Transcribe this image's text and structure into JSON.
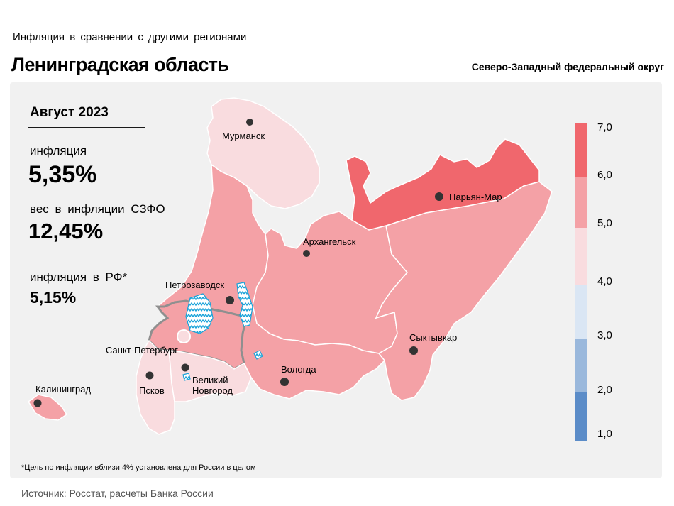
{
  "header": {
    "subtitle": "Инфляция  в сравнении  с другими  регионами",
    "title": "Ленинградская область",
    "district": "Северо-Западный федеральный округ"
  },
  "stats": {
    "period": "Август 2023",
    "inflation_label": "инфляция",
    "inflation_value": "5,35%",
    "weight_label": "вес в инфляции  СЗФО",
    "weight_value": "12,45%",
    "rf_label": "инфляция  в РФ*",
    "rf_value": "5,15%"
  },
  "map": {
    "cities": [
      {
        "key": "murmansk",
        "name": "Мурманск"
      },
      {
        "key": "naryan_mar",
        "name": "Нарьян-Мар"
      },
      {
        "key": "arkhangelsk",
        "name": "Архангельск"
      },
      {
        "key": "petrozavodsk",
        "name": "Петрозаводск"
      },
      {
        "key": "spb",
        "name": "Санкт-Петербург"
      },
      {
        "key": "syktyvkar",
        "name": "Сыктывкар"
      },
      {
        "key": "vologda",
        "name": "Вологда"
      },
      {
        "key": "kaliningrad",
        "name": "Калининград"
      },
      {
        "key": "pskov",
        "name": "Псков"
      },
      {
        "key": "v_novgorod_1",
        "name": "Великий"
      },
      {
        "key": "v_novgorod_2",
        "name": "Новгород"
      }
    ],
    "colors": {
      "over6": "#f0676d",
      "5to6": "#f4a1a6",
      "4to5": "#f9dcdf",
      "3to4": "#dae6f4",
      "2to3": "#9ab8dc",
      "1to2": "#5b8cc8",
      "highlight_border": "#8f8f8f",
      "lake": "#1aa3d9"
    }
  },
  "legend": {
    "ticks": [
      "7,0",
      "6,0",
      "5,0",
      "4,0",
      "3,0",
      "2,0",
      "1,0"
    ],
    "bins": [
      {
        "range": "6,0–7,0",
        "color": "#f0676d"
      },
      {
        "range": "5,0–6,0",
        "color": "#f4a1a6"
      },
      {
        "range": "4,0–5,0",
        "color": "#f9dcdf"
      },
      {
        "range": "3,0–4,0",
        "color": "#dae6f4"
      },
      {
        "range": "2,0–3,0",
        "color": "#9ab8dc"
      },
      {
        "range": "1,0–2,0",
        "color": "#5b8cc8"
      }
    ]
  },
  "footnote": "*Цель по инфляции вблизи 4% установлена для России в целом",
  "source": "Источник: Росстат, расчеты Банка России"
}
